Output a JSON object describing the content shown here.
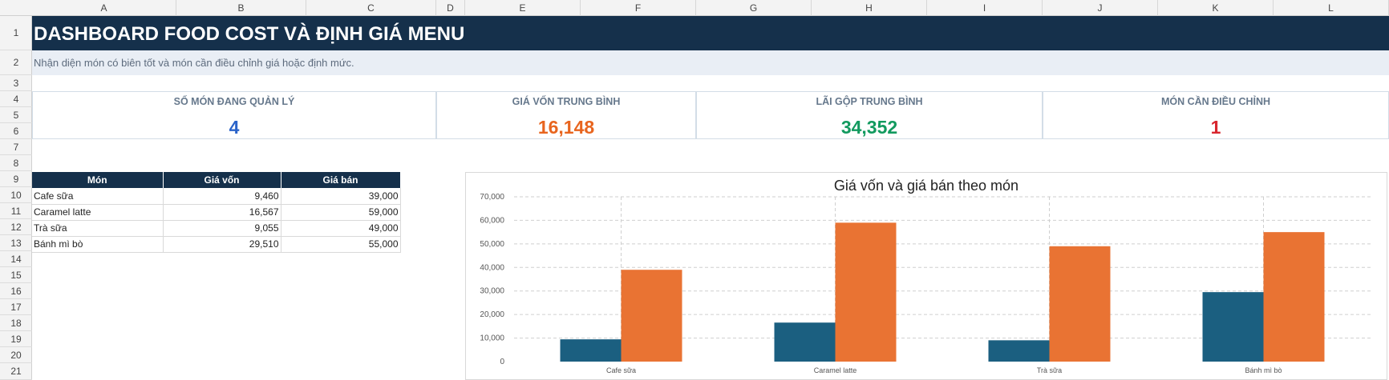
{
  "columns": [
    "A",
    "B",
    "C",
    "D",
    "E",
    "F",
    "G",
    "H",
    "I",
    "J",
    "K",
    "L"
  ],
  "rows": [
    "1",
    "2",
    "3",
    "4",
    "5",
    "6",
    "7",
    "8",
    "9",
    "10",
    "11",
    "12",
    "13",
    "14",
    "15",
    "16",
    "17",
    "18",
    "19",
    "20",
    "21"
  ],
  "header": {
    "title": "DASHBOARD FOOD COST VÀ ĐỊNH GIÁ MENU",
    "subtitle": "Nhận diện món có biên tốt và món cần điều chỉnh giá hoặc định mức."
  },
  "kpis": [
    {
      "label": "SỐ MÓN ĐANG QUẢN LÝ",
      "value": "4",
      "color": "#2a63c9"
    },
    {
      "label": "GIÁ VỐN TRUNG BÌNH",
      "value": "16,148",
      "color": "#e8651f"
    },
    {
      "label": "LÃI GỘP TRUNG BÌNH",
      "value": "34,352",
      "color": "#129a5f"
    },
    {
      "label": "MÓN CẦN ĐIỀU CHỈNH",
      "value": "1",
      "color": "#d8262f"
    }
  ],
  "table": {
    "headers": [
      "Món",
      "Giá vốn",
      "Giá bán"
    ],
    "rows": [
      [
        "Cafe sữa",
        "9,460",
        "39,000"
      ],
      [
        "Caramel latte",
        "16,567",
        "59,000"
      ],
      [
        "Trà sữa",
        "9,055",
        "49,000"
      ],
      [
        "Bánh mì bò",
        "29,510",
        "55,000"
      ]
    ]
  },
  "chart_data": {
    "type": "bar",
    "title": "Giá vốn và giá bán theo món",
    "categories": [
      "Cafe sữa",
      "Caramel latte",
      "Trà sữa",
      "Bánh mì bò"
    ],
    "series": [
      {
        "values": [
          9460,
          16567,
          9055,
          29510
        ],
        "color": "#1b5f80"
      },
      {
        "values": [
          39000,
          59000,
          49000,
          55000
        ],
        "color": "#e97333"
      }
    ],
    "yticks": [
      "0",
      "10,000",
      "20,000",
      "30,000",
      "40,000",
      "50,000",
      "60,000",
      "70,000"
    ],
    "ylim": [
      0,
      70000
    ],
    "grid": true
  }
}
